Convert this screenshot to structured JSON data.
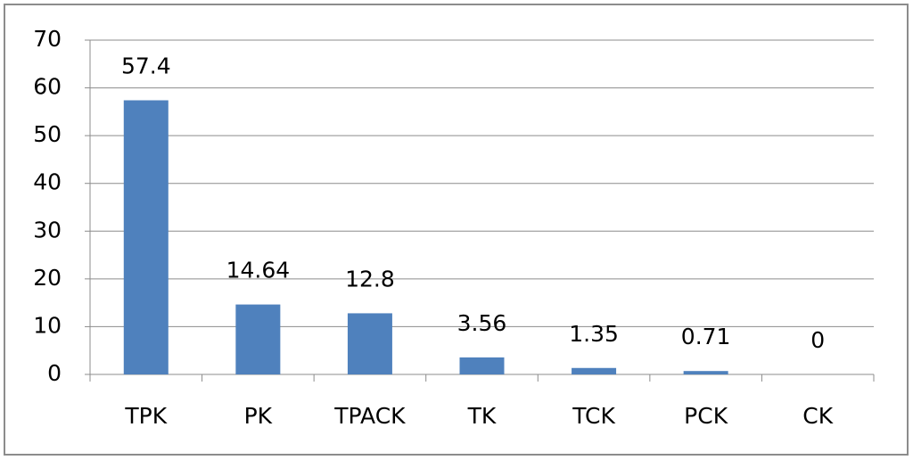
{
  "chart_data": {
    "type": "bar",
    "categories": [
      "TPK",
      "PK",
      "TPACK",
      "TK",
      "TCK",
      "PCK",
      "CK"
    ],
    "values": [
      57.4,
      14.64,
      12.8,
      3.56,
      1.35,
      0.71,
      0
    ],
    "color": "#4f81bd",
    "ylim": [
      0,
      70
    ],
    "yticks": [
      0,
      10,
      20,
      30,
      40,
      50,
      60,
      70
    ],
    "grid": true
  }
}
